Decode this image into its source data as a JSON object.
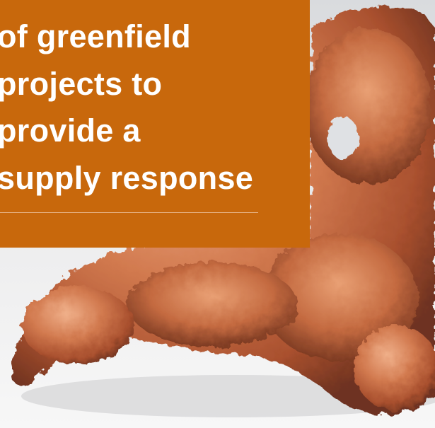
{
  "headline": {
    "lines": [
      "of greenfield",
      "projects to",
      "provide a",
      "supply response"
    ]
  }
}
